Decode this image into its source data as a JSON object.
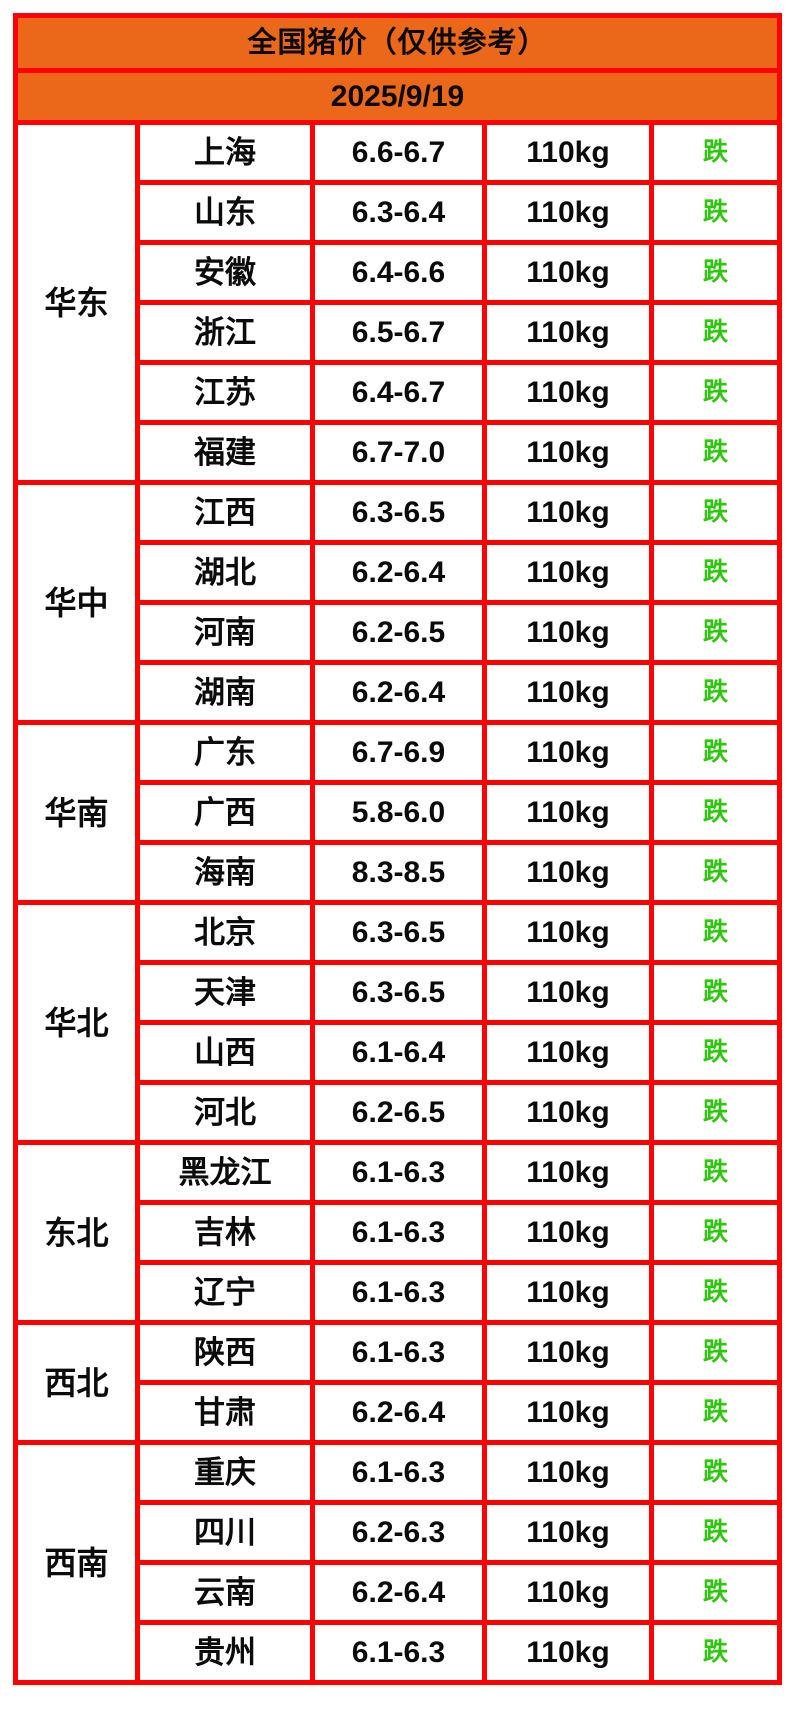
{
  "colors": {
    "header_bg": "#EB671A",
    "grid_red": "#FE0101",
    "fall_green": "#2FC70E",
    "text_black": "#0B0B0B"
  },
  "chart_data": {
    "type": "table",
    "title": "全国猪价（仅供参考）",
    "date": "2025/9/19",
    "columns": [
      "region",
      "province",
      "price_range",
      "weight",
      "trend"
    ],
    "layout_hint": "region column uses merged cells (rowspan) per region group; red grid, orange header rows",
    "regions": [
      {
        "name": "华东",
        "rows": [
          {
            "province": "上海",
            "price": "6.6-6.7",
            "weight": "110kg",
            "trend": "跌"
          },
          {
            "province": "山东",
            "price": "6.3-6.4",
            "weight": "110kg",
            "trend": "跌"
          },
          {
            "province": "安徽",
            "price": "6.4-6.6",
            "weight": "110kg",
            "trend": "跌"
          },
          {
            "province": "浙江",
            "price": "6.5-6.7",
            "weight": "110kg",
            "trend": "跌"
          },
          {
            "province": "江苏",
            "price": "6.4-6.7",
            "weight": "110kg",
            "trend": "跌"
          },
          {
            "province": "福建",
            "price": "6.7-7.0",
            "weight": "110kg",
            "trend": "跌"
          }
        ]
      },
      {
        "name": "华中",
        "rows": [
          {
            "province": "江西",
            "price": "6.3-6.5",
            "weight": "110kg",
            "trend": "跌"
          },
          {
            "province": "湖北",
            "price": "6.2-6.4",
            "weight": "110kg",
            "trend": "跌"
          },
          {
            "province": "河南",
            "price": "6.2-6.5",
            "weight": "110kg",
            "trend": "跌"
          },
          {
            "province": "湖南",
            "price": "6.2-6.4",
            "weight": "110kg",
            "trend": "跌"
          }
        ]
      },
      {
        "name": "华南",
        "rows": [
          {
            "province": "广东",
            "price": "6.7-6.9",
            "weight": "110kg",
            "trend": "跌"
          },
          {
            "province": "广西",
            "price": "5.8-6.0",
            "weight": "110kg",
            "trend": "跌"
          },
          {
            "province": "海南",
            "price": "8.3-8.5",
            "weight": "110kg",
            "trend": "跌"
          }
        ]
      },
      {
        "name": "华北",
        "rows": [
          {
            "province": "北京",
            "price": "6.3-6.5",
            "weight": "110kg",
            "trend": "跌"
          },
          {
            "province": "天津",
            "price": "6.3-6.5",
            "weight": "110kg",
            "trend": "跌"
          },
          {
            "province": "山西",
            "price": "6.1-6.4",
            "weight": "110kg",
            "trend": "跌"
          },
          {
            "province": "河北",
            "price": "6.2-6.5",
            "weight": "110kg",
            "trend": "跌"
          }
        ]
      },
      {
        "name": "东北",
        "rows": [
          {
            "province": "黑龙江",
            "price": "6.1-6.3",
            "weight": "110kg",
            "trend": "跌"
          },
          {
            "province": "吉林",
            "price": "6.1-6.3",
            "weight": "110kg",
            "trend": "跌"
          },
          {
            "province": "辽宁",
            "price": "6.1-6.3",
            "weight": "110kg",
            "trend": "跌"
          }
        ]
      },
      {
        "name": "西北",
        "rows": [
          {
            "province": "陕西",
            "price": "6.1-6.3",
            "weight": "110kg",
            "trend": "跌"
          },
          {
            "province": "甘肃",
            "price": "6.2-6.4",
            "weight": "110kg",
            "trend": "跌"
          }
        ]
      },
      {
        "name": "西南",
        "rows": [
          {
            "province": "重庆",
            "price": "6.1-6.3",
            "weight": "110kg",
            "trend": "跌"
          },
          {
            "province": "四川",
            "price": "6.2-6.3",
            "weight": "110kg",
            "trend": "跌"
          },
          {
            "province": "云南",
            "price": "6.2-6.4",
            "weight": "110kg",
            "trend": "跌"
          },
          {
            "province": "贵州",
            "price": "6.1-6.3",
            "weight": "110kg",
            "trend": "跌"
          }
        ]
      }
    ]
  }
}
